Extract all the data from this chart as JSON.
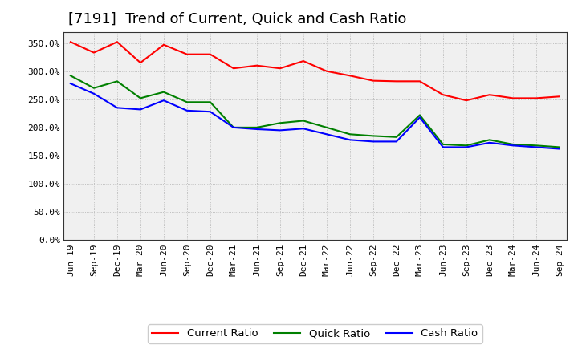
{
  "title": "[7191]  Trend of Current, Quick and Cash Ratio",
  "x_labels": [
    "Jun-19",
    "Sep-19",
    "Dec-19",
    "Mar-20",
    "Jun-20",
    "Sep-20",
    "Dec-20",
    "Mar-21",
    "Jun-21",
    "Sep-21",
    "Dec-21",
    "Mar-22",
    "Jun-22",
    "Sep-22",
    "Dec-22",
    "Mar-23",
    "Jun-23",
    "Sep-23",
    "Dec-23",
    "Mar-24",
    "Jun-24",
    "Sep-24"
  ],
  "current_ratio": [
    3.52,
    3.33,
    3.52,
    3.15,
    3.47,
    3.3,
    3.3,
    3.05,
    3.1,
    3.05,
    3.18,
    3.0,
    2.92,
    2.83,
    2.82,
    2.82,
    2.58,
    2.48,
    2.58,
    2.52,
    2.52,
    2.55
  ],
  "quick_ratio": [
    2.92,
    2.7,
    2.82,
    2.52,
    2.63,
    2.45,
    2.45,
    2.0,
    2.0,
    2.08,
    2.12,
    2.0,
    1.88,
    1.85,
    1.83,
    2.22,
    1.7,
    1.68,
    1.78,
    1.7,
    1.68,
    1.65
  ],
  "cash_ratio": [
    2.78,
    2.6,
    2.35,
    2.32,
    2.48,
    2.3,
    2.28,
    2.0,
    1.97,
    1.95,
    1.98,
    1.88,
    1.78,
    1.75,
    1.75,
    2.18,
    1.65,
    1.65,
    1.73,
    1.68,
    1.65,
    1.62
  ],
  "current_color": "#FF0000",
  "quick_color": "#008000",
  "cash_color": "#0000FF",
  "ylim": [
    0.0,
    3.7
  ],
  "yticks": [
    0.0,
    0.5,
    1.0,
    1.5,
    2.0,
    2.5,
    3.0,
    3.5
  ],
  "ytick_labels": [
    "0.0%",
    "50.0%",
    "100.0%",
    "150.0%",
    "200.0%",
    "250.0%",
    "300.0%",
    "350.0%"
  ],
  "bg_color": "#FFFFFF",
  "plot_bg_color": "#F0F0F0",
  "grid_color": "#AAAAAA",
  "legend_labels": [
    "Current Ratio",
    "Quick Ratio",
    "Cash Ratio"
  ],
  "title_fontsize": 13,
  "label_fontsize": 8,
  "legend_fontsize": 9.5,
  "linewidth": 1.5
}
